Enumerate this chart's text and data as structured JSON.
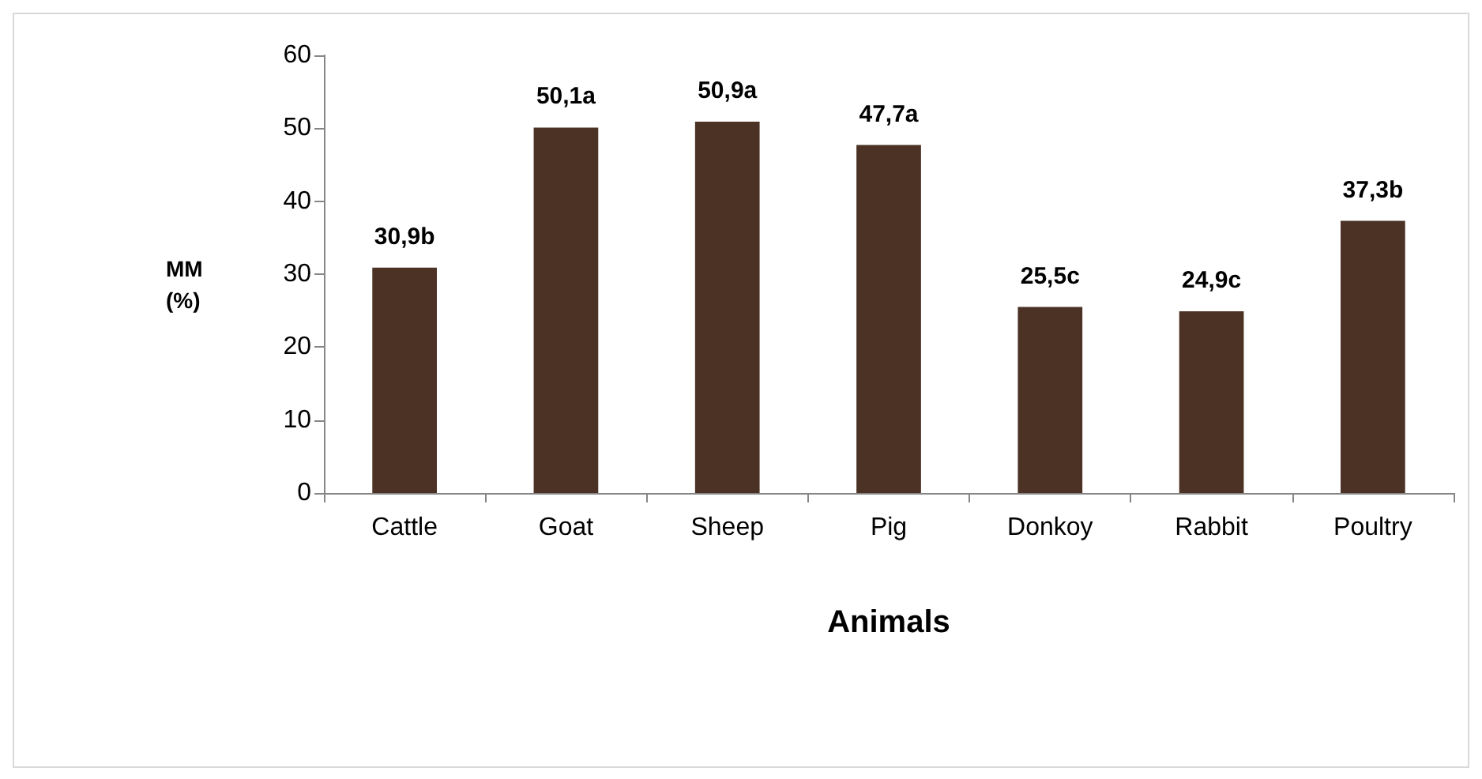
{
  "chart_data": {
    "type": "bar",
    "xlabel": "Animals",
    "ylabel": "MM (%)",
    "categories": [
      "Cattle",
      "Goat",
      "Sheep",
      "Pig",
      "Donkoy",
      "Rabbit",
      "Poultry"
    ],
    "values": [
      30.9,
      50.1,
      50.9,
      47.7,
      25.5,
      24.9,
      37.3
    ],
    "value_labels": [
      "30,9b",
      "50,1a",
      "50,9a",
      "47,7a",
      "25,5c",
      "24,9c",
      "37,3b"
    ],
    "color": "#4b3224",
    "ylim": [
      0,
      60
    ],
    "yticks": [
      0,
      10,
      20,
      30,
      40,
      50,
      60
    ],
    "grid": false
  }
}
